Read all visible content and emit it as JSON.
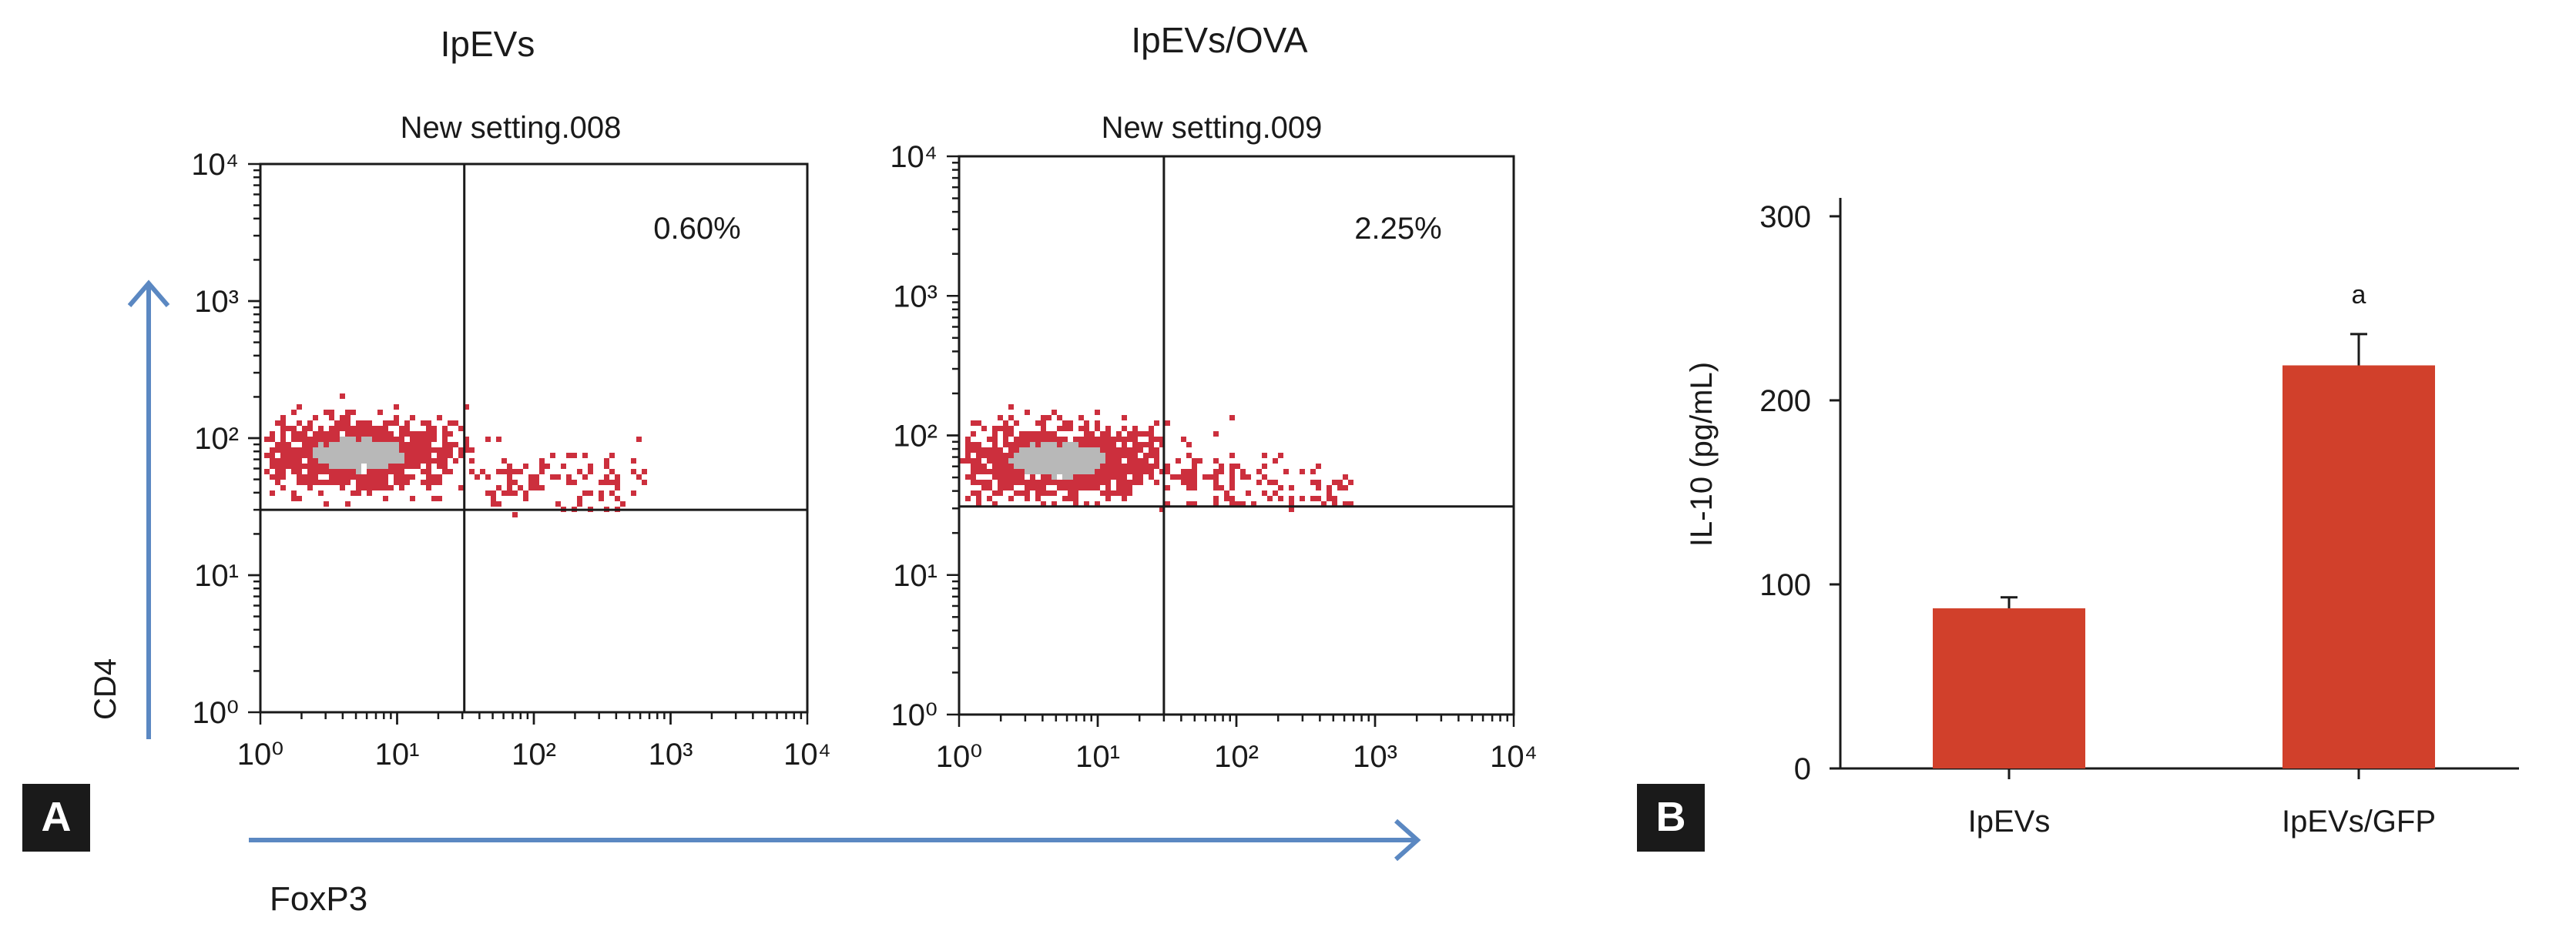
{
  "panel_labels": {
    "a": "A",
    "b": "B"
  },
  "axis_titles": {
    "y": "CD4",
    "x": "FoxP3"
  },
  "colors": {
    "arrow": "#5b88c2",
    "bar": "#d1402b",
    "dots": "#cc2f3d",
    "dots_dense": "#b8b8b8",
    "label_bg": "#1a1a1a"
  },
  "chart_data": [
    {
      "type": "scatter",
      "group_title": "IpEVs",
      "subtitle": "New setting.008",
      "annotation": "0.60%",
      "xscale": "log",
      "yscale": "log",
      "xlim": [
        1,
        10000
      ],
      "ylim": [
        1,
        10000
      ],
      "xticks": [
        "10⁰",
        "10¹",
        "10²",
        "10³",
        "10⁴"
      ],
      "yticks": [
        "10⁰",
        "10¹",
        "10²",
        "10³",
        "10⁴"
      ],
      "gates": {
        "x": 31,
        "y": 30
      },
      "cluster": {
        "x": 5,
        "y": 80
      }
    },
    {
      "type": "scatter",
      "group_title": "IpEVs/OVA",
      "subtitle": "New setting.009",
      "annotation": "2.25%",
      "xscale": "log",
      "yscale": "log",
      "xlim": [
        1,
        10000
      ],
      "ylim": [
        1,
        10000
      ],
      "xticks": [
        "10⁰",
        "10¹",
        "10²",
        "10³",
        "10⁴"
      ],
      "yticks": [
        "10⁰",
        "10¹",
        "10²",
        "10³",
        "10⁴"
      ],
      "gates": {
        "x": 30,
        "y": 31
      },
      "cluster": {
        "x": 5,
        "y": 70
      }
    },
    {
      "type": "bar",
      "categories": [
        "IpEVs",
        "IpEVs/GFP"
      ],
      "values": [
        87,
        219
      ],
      "errors": [
        6,
        17
      ],
      "significance": [
        "",
        "a"
      ],
      "ylabel": "IL-10 (pg/mL)",
      "ylim": [
        0,
        310
      ],
      "yticks": [
        0,
        100,
        200,
        300
      ]
    }
  ]
}
